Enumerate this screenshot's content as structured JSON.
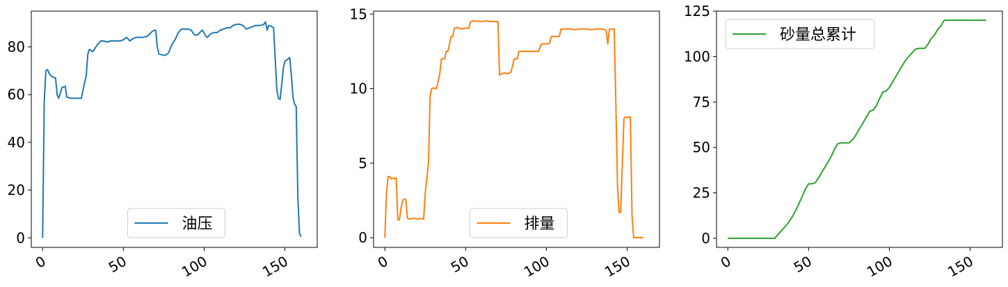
{
  "chart_data": [
    {
      "type": "line",
      "xlim": [
        -7,
        170
      ],
      "ylim": [
        -4,
        95
      ],
      "xticks": [
        0,
        50,
        100,
        150
      ],
      "yticks": [
        0,
        20,
        40,
        60,
        80
      ],
      "tick_labels_x": [
        "0",
        "50",
        "100",
        "150"
      ],
      "tick_labels_y": [
        "0",
        "20",
        "40",
        "60",
        "80"
      ],
      "legend": {
        "position": "lower center"
      },
      "series": [
        {
          "name": "油压",
          "color": "#1f77b4",
          "points": [
            [
              0,
              0
            ],
            [
              1,
              57
            ],
            [
              2,
              70
            ],
            [
              3,
              70.5
            ],
            [
              4,
              69
            ],
            [
              5,
              68
            ],
            [
              6,
              67.5
            ],
            [
              8,
              67
            ],
            [
              9,
              60
            ],
            [
              10,
              58.5
            ],
            [
              12,
              63
            ],
            [
              14,
              63.5
            ],
            [
              15,
              59
            ],
            [
              17,
              58.5
            ],
            [
              20,
              58.5
            ],
            [
              24,
              58.5
            ],
            [
              26,
              65
            ],
            [
              27,
              68
            ],
            [
              28,
              77
            ],
            [
              29,
              79
            ],
            [
              31,
              78
            ],
            [
              32,
              79
            ],
            [
              34,
              81
            ],
            [
              36,
              82.5
            ],
            [
              38,
              82.5
            ],
            [
              40,
              82
            ],
            [
              42,
              82.5
            ],
            [
              44,
              82.5
            ],
            [
              46,
              82.5
            ],
            [
              48,
              82.5
            ],
            [
              50,
              83
            ],
            [
              52,
              84
            ],
            [
              54,
              82.5
            ],
            [
              56,
              83.5
            ],
            [
              58,
              84
            ],
            [
              62,
              84
            ],
            [
              65,
              84.5
            ],
            [
              67,
              86
            ],
            [
              69,
              87
            ],
            [
              70,
              87
            ],
            [
              71,
              80
            ],
            [
              72,
              77
            ],
            [
              75,
              76.5
            ],
            [
              76,
              76.5
            ],
            [
              78,
              77.5
            ],
            [
              80,
              81
            ],
            [
              82,
              83
            ],
            [
              84,
              86
            ],
            [
              86,
              87.5
            ],
            [
              90,
              87.5
            ],
            [
              92,
              87
            ],
            [
              94,
              85
            ],
            [
              96,
              85
            ],
            [
              98,
              86.5
            ],
            [
              99,
              87
            ],
            [
              101,
              84.5
            ],
            [
              102,
              84
            ],
            [
              104,
              85.5
            ],
            [
              106,
              86
            ],
            [
              108,
              86
            ],
            [
              110,
              87
            ],
            [
              112,
              87.5
            ],
            [
              114,
              88
            ],
            [
              116,
              88
            ],
            [
              118,
              89
            ],
            [
              120,
              89.5
            ],
            [
              122,
              89.5
            ],
            [
              124,
              89
            ],
            [
              126,
              87.5
            ],
            [
              128,
              88
            ],
            [
              130,
              88.5
            ],
            [
              132,
              89
            ],
            [
              134,
              89
            ],
            [
              135,
              89
            ],
            [
              137,
              89.5
            ],
            [
              138,
              90.5
            ],
            [
              139,
              87
            ],
            [
              140,
              89
            ],
            [
              142,
              88.5
            ],
            [
              143,
              88
            ],
            [
              144,
              75
            ],
            [
              145,
              62
            ],
            [
              146,
              58.5
            ],
            [
              147,
              58
            ],
            [
              148,
              64
            ],
            [
              149,
              71
            ],
            [
              150,
              74
            ],
            [
              152,
              75
            ],
            [
              153,
              75.5
            ],
            [
              154,
              68
            ],
            [
              155,
              59
            ],
            [
              156,
              56
            ],
            [
              157,
              55
            ],
            [
              158,
              17
            ],
            [
              159,
              2
            ],
            [
              160,
              0.5
            ]
          ]
        }
      ]
    },
    {
      "type": "line",
      "xlim": [
        -7,
        170
      ],
      "ylim": [
        -0.65,
        15.2
      ],
      "xticks": [
        0,
        50,
        100,
        150
      ],
      "yticks": [
        0,
        5,
        10,
        15
      ],
      "tick_labels_x": [
        "0",
        "50",
        "100",
        "150"
      ],
      "tick_labels_y": [
        "0",
        "5",
        "10",
        "15"
      ],
      "legend": {
        "position": "lower center"
      },
      "series": [
        {
          "name": "排量",
          "color": "#ff7f0e",
          "points": [
            [
              0,
              0
            ],
            [
              1,
              3
            ],
            [
              2,
              4.1
            ],
            [
              3,
              4.1
            ],
            [
              4,
              3.95
            ],
            [
              5,
              4
            ],
            [
              6,
              3.95
            ],
            [
              7,
              4
            ],
            [
              8,
              1.2
            ],
            [
              9,
              1.2
            ],
            [
              10,
              2
            ],
            [
              11,
              2.5
            ],
            [
              12,
              2.6
            ],
            [
              13,
              2.55
            ],
            [
              14,
              1.3
            ],
            [
              15,
              1.25
            ],
            [
              18,
              1.3
            ],
            [
              20,
              1.25
            ],
            [
              22,
              1.3
            ],
            [
              24,
              1.25
            ],
            [
              25,
              3
            ],
            [
              26,
              4
            ],
            [
              27,
              5
            ],
            [
              28,
              9.5
            ],
            [
              29,
              10
            ],
            [
              30,
              10.05
            ],
            [
              32,
              10
            ],
            [
              33,
              10.5
            ],
            [
              34,
              11
            ],
            [
              35,
              12
            ],
            [
              37,
              12
            ],
            [
              38,
              12.5
            ],
            [
              39,
              12.5
            ],
            [
              40,
              13
            ],
            [
              41,
              13.5
            ],
            [
              42,
              13.5
            ],
            [
              43,
              14.05
            ],
            [
              45,
              14.1
            ],
            [
              47,
              14
            ],
            [
              50,
              14.05
            ],
            [
              52,
              14.05
            ],
            [
              53,
              14.5
            ],
            [
              55,
              14.55
            ],
            [
              60,
              14.5
            ],
            [
              63,
              14.55
            ],
            [
              65,
              14.5
            ],
            [
              68,
              14.5
            ],
            [
              70,
              14.5
            ],
            [
              71,
              10.9
            ],
            [
              72,
              11
            ],
            [
              74,
              11.05
            ],
            [
              76,
              11
            ],
            [
              78,
              11.1
            ],
            [
              79,
              11.5
            ],
            [
              80,
              12
            ],
            [
              81,
              12
            ],
            [
              82,
              12
            ],
            [
              83,
              12.5
            ],
            [
              85,
              12.5
            ],
            [
              90,
              12.5
            ],
            [
              93,
              12.5
            ],
            [
              95,
              12.5
            ],
            [
              97,
              13
            ],
            [
              100,
              13
            ],
            [
              102,
              13.05
            ],
            [
              103,
              13.5
            ],
            [
              105,
              13.5
            ],
            [
              107,
              13.5
            ],
            [
              108,
              13.5
            ],
            [
              109,
              14
            ],
            [
              112,
              14
            ],
            [
              115,
              14
            ],
            [
              118,
              13.95
            ],
            [
              120,
              14
            ],
            [
              125,
              14
            ],
            [
              128,
              13.95
            ],
            [
              130,
              14
            ],
            [
              135,
              14
            ],
            [
              137,
              13.9
            ],
            [
              138,
              13
            ],
            [
              139,
              14
            ],
            [
              141,
              14
            ],
            [
              142,
              14
            ],
            [
              143,
              9
            ],
            [
              144,
              3.5
            ],
            [
              145,
              1.7
            ],
            [
              146,
              1.7
            ],
            [
              147,
              5
            ],
            [
              148,
              8
            ],
            [
              149,
              8.1
            ],
            [
              150,
              8.05
            ],
            [
              151,
              8.1
            ],
            [
              152,
              8.1
            ],
            [
              153,
              1.5
            ],
            [
              154,
              0
            ],
            [
              160,
              0
            ]
          ]
        }
      ]
    },
    {
      "type": "line",
      "xlim": [
        -7,
        170
      ],
      "ylim": [
        -5,
        125
      ],
      "xticks": [
        0,
        50,
        100,
        150
      ],
      "yticks": [
        0,
        25,
        50,
        75,
        100,
        125
      ],
      "tick_labels_x": [
        "0",
        "50",
        "100",
        "150"
      ],
      "tick_labels_y": [
        "0",
        "25",
        "50",
        "75",
        "100",
        "125"
      ],
      "legend": {
        "position": "upper left"
      },
      "series": [
        {
          "name": "砂量总累计",
          "color": "#2ca02c",
          "points": [
            [
              0,
              0
            ],
            [
              10,
              0
            ],
            [
              20,
              0
            ],
            [
              28,
              0
            ],
            [
              29,
              0
            ],
            [
              30,
              1
            ],
            [
              32,
              3
            ],
            [
              35,
              6
            ],
            [
              37,
              8
            ],
            [
              40,
              12
            ],
            [
              43,
              17
            ],
            [
              46,
              23
            ],
            [
              48,
              27
            ],
            [
              50,
              30
            ],
            [
              52,
              30
            ],
            [
              54,
              30.5
            ],
            [
              56,
              33
            ],
            [
              58,
              36
            ],
            [
              60,
              39
            ],
            [
              62,
              42
            ],
            [
              64,
              45
            ],
            [
              66,
              49
            ],
            [
              68,
              52
            ],
            [
              70,
              52.5
            ],
            [
              72,
              52.5
            ],
            [
              75,
              52.5
            ],
            [
              78,
              55
            ],
            [
              80,
              58
            ],
            [
              82,
              61
            ],
            [
              84,
              64
            ],
            [
              86,
              67
            ],
            [
              88,
              70
            ],
            [
              90,
              70.5
            ],
            [
              92,
              73
            ],
            [
              94,
              77
            ],
            [
              96,
              80.5
            ],
            [
              98,
              81
            ],
            [
              100,
              83
            ],
            [
              102,
              86
            ],
            [
              104,
              89
            ],
            [
              106,
              92
            ],
            [
              108,
              95
            ],
            [
              110,
              98
            ],
            [
              112,
              100
            ],
            [
              114,
              102
            ],
            [
              116,
              104
            ],
            [
              118,
              104.5
            ],
            [
              120,
              104.5
            ],
            [
              122,
              104.5
            ],
            [
              124,
              107
            ],
            [
              126,
              110
            ],
            [
              128,
              112
            ],
            [
              130,
              115
            ],
            [
              132,
              117
            ],
            [
              134,
              120
            ],
            [
              136,
              120
            ],
            [
              140,
              120
            ],
            [
              150,
              120
            ],
            [
              160,
              120
            ]
          ]
        }
      ]
    }
  ]
}
